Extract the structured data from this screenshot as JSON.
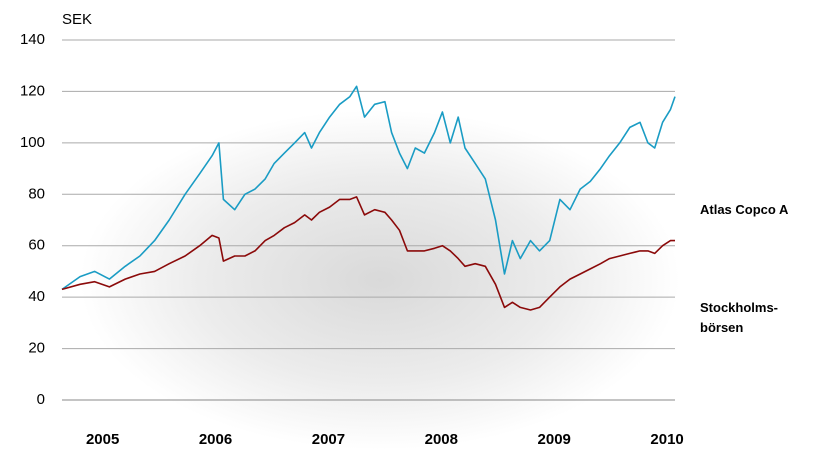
{
  "chart_data": {
    "type": "line",
    "y_label": "SEK",
    "x": [
      2004.64,
      2004.8,
      2004.93,
      2005.06,
      2005.2,
      2005.33,
      2005.46,
      2005.59,
      2005.73,
      2005.86,
      2005.97,
      2006.03,
      2006.07,
      2006.17,
      2006.26,
      2006.35,
      2006.44,
      2006.52,
      2006.61,
      2006.7,
      2006.79,
      2006.85,
      2006.92,
      2007.01,
      2007.1,
      2007.19,
      2007.25,
      2007.32,
      2007.41,
      2007.5,
      2007.56,
      2007.63,
      2007.7,
      2007.77,
      2007.85,
      2007.94,
      2008.01,
      2008.08,
      2008.15,
      2008.21,
      2008.3,
      2008.39,
      2008.48,
      2008.56,
      2008.63,
      2008.7,
      2008.79,
      2008.87,
      2008.96,
      2009.05,
      2009.14,
      2009.23,
      2009.32,
      2009.41,
      2009.49,
      2009.58,
      2009.67,
      2009.76,
      2009.83,
      2009.89,
      2009.96,
      2010.03,
      2010.07
    ],
    "series": [
      {
        "name": "Atlas Copco A",
        "color": "#1a9cc4",
        "values": [
          43,
          48,
          50,
          47,
          52,
          56,
          62,
          70,
          80,
          88,
          95,
          100,
          78,
          74,
          80,
          82,
          86,
          92,
          96,
          100,
          104,
          98,
          104,
          110,
          115,
          118,
          122,
          110,
          115,
          116,
          104,
          96,
          90,
          98,
          96,
          104,
          112,
          100,
          110,
          98,
          92,
          86,
          70,
          49,
          62,
          55,
          62,
          58,
          62,
          78,
          74,
          82,
          85,
          90,
          95,
          100,
          106,
          108,
          100,
          98,
          108,
          113,
          118
        ]
      },
      {
        "name": "Stockholms-börsen",
        "color": "#8b0a0a",
        "values": [
          43,
          45,
          46,
          44,
          47,
          49,
          50,
          53,
          56,
          60,
          64,
          63,
          54,
          56,
          56,
          58,
          62,
          64,
          67,
          69,
          72,
          70,
          73,
          75,
          78,
          78,
          79,
          72,
          74,
          73,
          70,
          66,
          58,
          58,
          58,
          59,
          60,
          58,
          55,
          52,
          53,
          52,
          45,
          36,
          38,
          36,
          35,
          36,
          40,
          44,
          47,
          49,
          51,
          53,
          55,
          56,
          57,
          58,
          58,
          57,
          60,
          62,
          62
        ]
      }
    ],
    "xlim": [
      2004.64,
      2010.07
    ],
    "xticks": [
      2005,
      2006,
      2007,
      2008,
      2009,
      2010
    ],
    "ylim": [
      0,
      140
    ],
    "yticks": [
      0,
      20,
      40,
      60,
      80,
      100,
      120,
      140
    ],
    "grid": true
  }
}
